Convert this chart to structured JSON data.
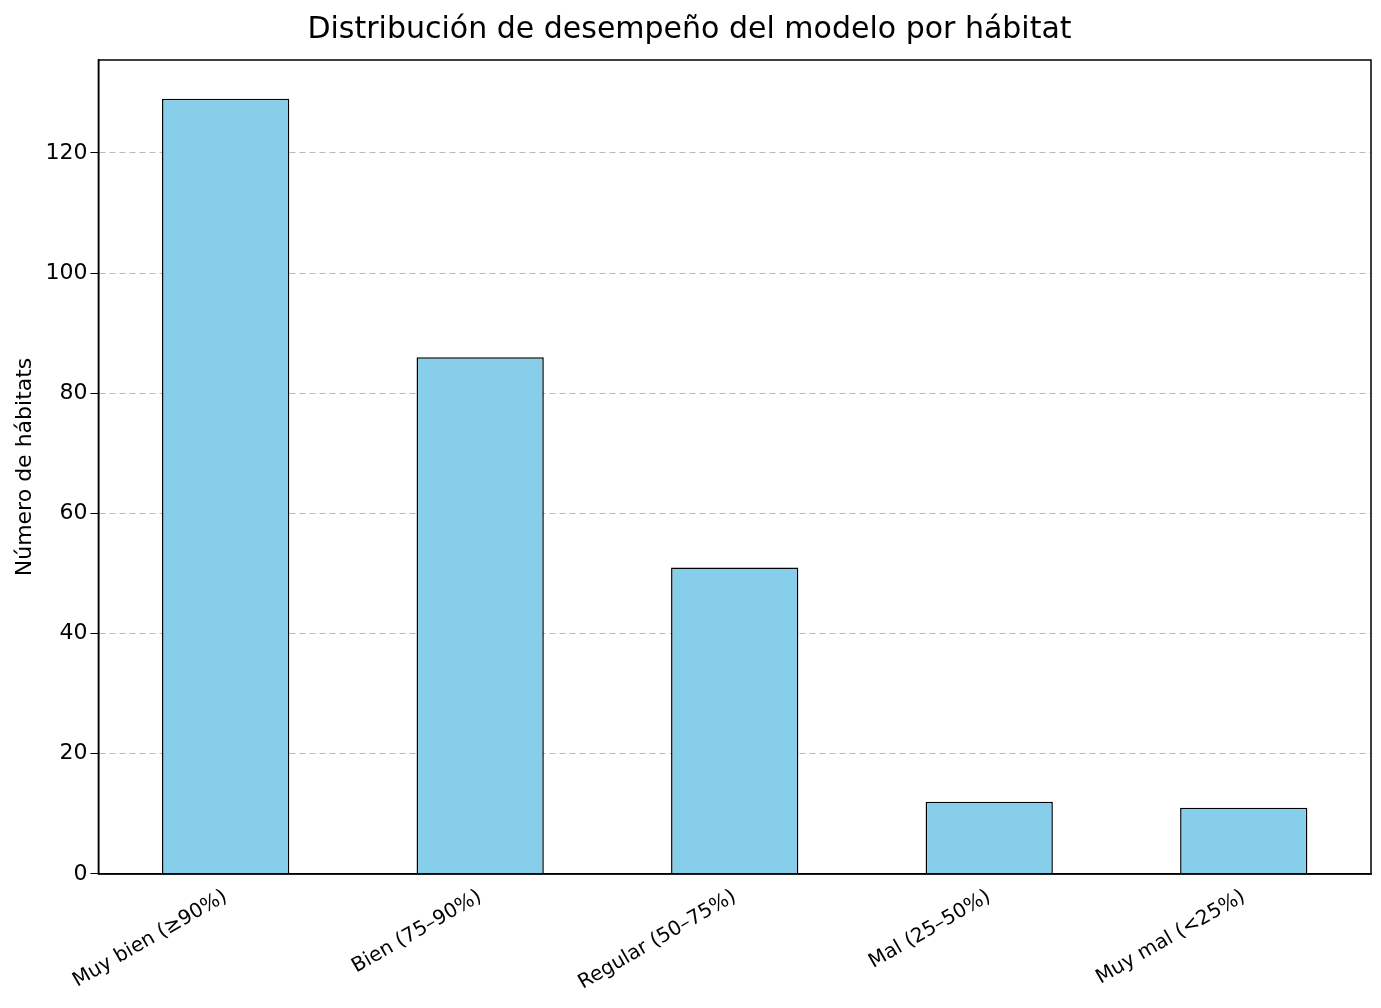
{
  "chart_data": {
    "type": "bar",
    "title": "Distribución de desempeño del modelo por hábitat",
    "ylabel": "Número de hábitats",
    "categories": [
      "Muy bien (≥90%)",
      "Bien (75–90%)",
      "Regular (50–75%)",
      "Mal (25–50%)",
      "Muy mal (<25%)"
    ],
    "values": [
      129,
      86,
      51,
      12,
      11
    ],
    "color": "#87ceeb",
    "ylim": [
      0,
      135.45
    ],
    "yticks": [
      0,
      20,
      40,
      60,
      80,
      100,
      120
    ],
    "grid": "y",
    "legend": false
  }
}
